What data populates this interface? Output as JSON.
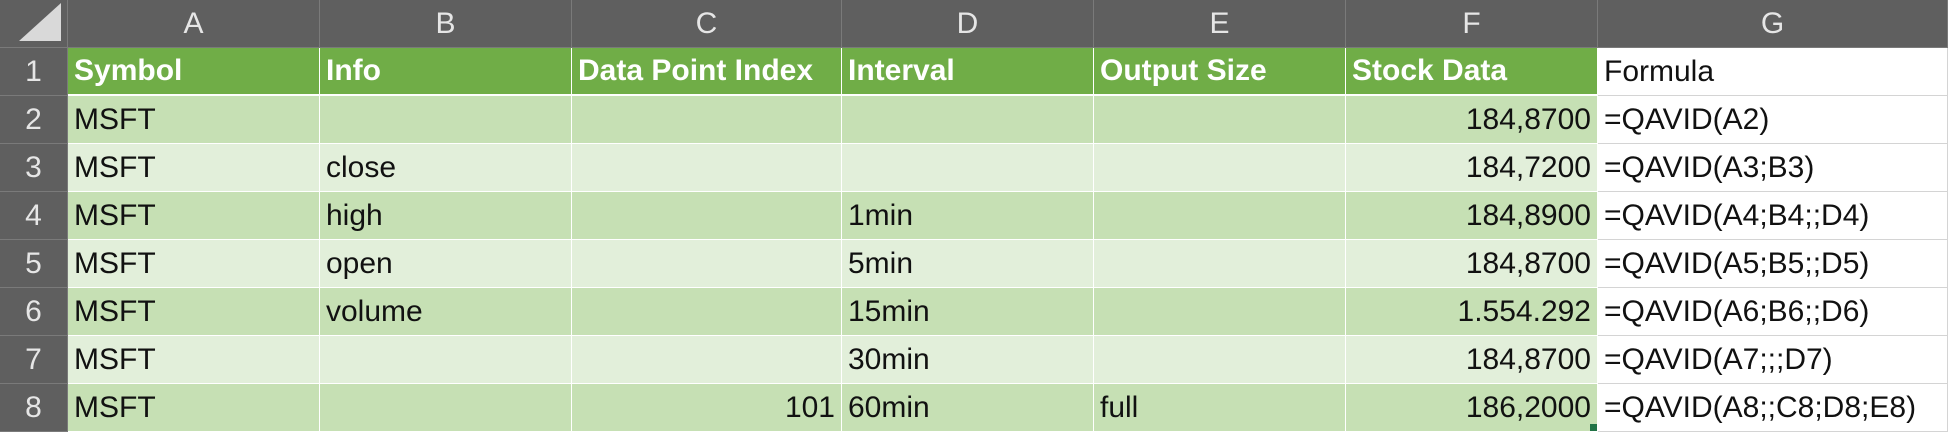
{
  "columns": [
    "A",
    "B",
    "C",
    "D",
    "E",
    "F",
    "G"
  ],
  "header_row": {
    "number": "1",
    "cells": [
      "Symbol",
      "Info",
      "Data Point Index",
      "Interval",
      "Output Size",
      "Stock Data",
      "Formula"
    ]
  },
  "rows": [
    {
      "number": "2",
      "symbol": "MSFT",
      "info": "",
      "index": "",
      "interval": "",
      "size": "",
      "stock": "184,8700",
      "formula": "=QAVID(A2)"
    },
    {
      "number": "3",
      "symbol": "MSFT",
      "info": "close",
      "index": "",
      "interval": "",
      "size": "",
      "stock": "184,7200",
      "formula": "=QAVID(A3;B3)"
    },
    {
      "number": "4",
      "symbol": "MSFT",
      "info": "high",
      "index": "",
      "interval": "1min",
      "size": "",
      "stock": "184,8900",
      "formula": "=QAVID(A4;B4;;D4)"
    },
    {
      "number": "5",
      "symbol": "MSFT",
      "info": "open",
      "index": "",
      "interval": "5min",
      "size": "",
      "stock": "184,8700",
      "formula": "=QAVID(A5;B5;;D5)"
    },
    {
      "number": "6",
      "symbol": "MSFT",
      "info": "volume",
      "index": "",
      "interval": "15min",
      "size": "",
      "stock": "1.554.292",
      "formula": "=QAVID(A6;B6;;D6)"
    },
    {
      "number": "7",
      "symbol": "MSFT",
      "info": "",
      "index": "",
      "interval": "30min",
      "size": "",
      "stock": "184,8700",
      "formula": "=QAVID(A7;;;D7)"
    },
    {
      "number": "8",
      "symbol": "MSFT",
      "info": "",
      "index": "101",
      "interval": "60min",
      "size": "full",
      "stock": "186,2000",
      "formula": "=QAVID(A8;;C8;D8;E8)"
    }
  ],
  "colors": {
    "header_fill": "#70ad47",
    "band_dark": "#c6e0b4",
    "band_light": "#e2efda",
    "grid_header": "#5f5f5f"
  }
}
